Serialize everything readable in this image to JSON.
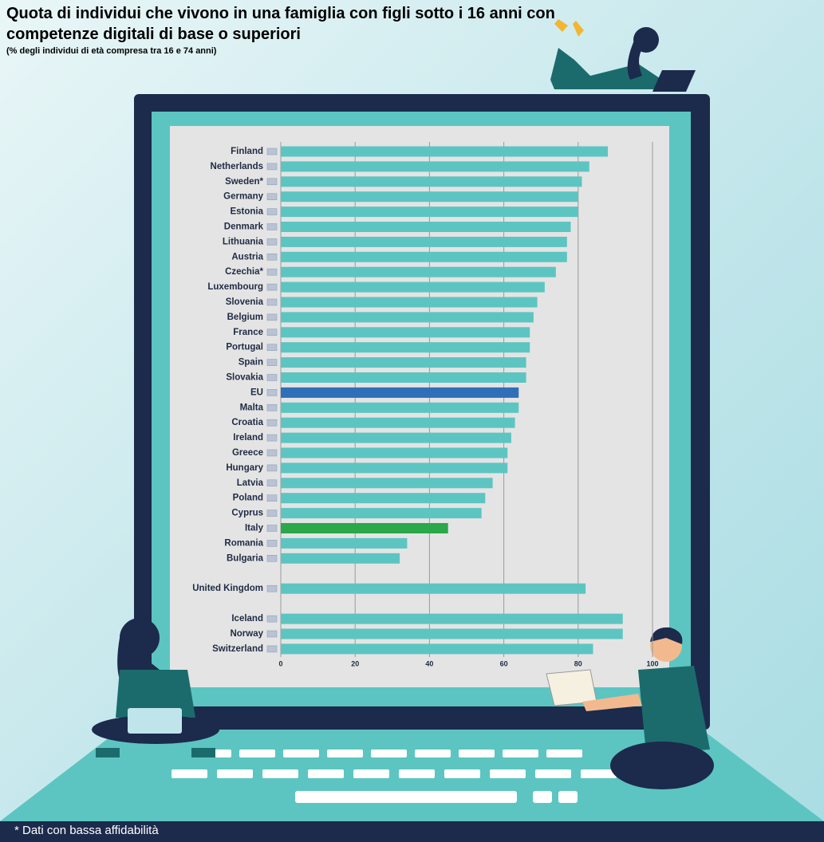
{
  "chart_data": {
    "type": "bar",
    "orientation": "horizontal",
    "title": "Quota di individui che vivono in una famiglia con figli sotto i 16 anni con competenze digitali di base o superiori",
    "subtitle": "(% degli individui di età compresa tra 16 e 74 anni)",
    "footnote": "* Dati con bassa affidabilità",
    "categories": [
      "Finland",
      "Netherlands",
      "Sweden*",
      "Germany",
      "Estonia",
      "Denmark",
      "Lithuania",
      "Austria",
      "Czechia*",
      "Luxembourg",
      "Slovenia",
      "Belgium",
      "France",
      "Portugal",
      "Spain",
      "Slovakia",
      "EU",
      "Malta",
      "Croatia",
      "Ireland",
      "Greece",
      "Hungary",
      "Latvia",
      "Poland",
      "Cyprus",
      "Italy",
      "Romania",
      "Bulgaria",
      "United Kingdom",
      "Iceland",
      "Norway",
      "Switzerland"
    ],
    "values": [
      88,
      83,
      81,
      80,
      80,
      78,
      77,
      77,
      74,
      71,
      69,
      68,
      67,
      67,
      66,
      66,
      64,
      64,
      63,
      62,
      61,
      61,
      57,
      55,
      54,
      45,
      34,
      32,
      82,
      92,
      92,
      84
    ],
    "colors": [
      "#5cc5c1",
      "#5cc5c1",
      "#5cc5c1",
      "#5cc5c1",
      "#5cc5c1",
      "#5cc5c1",
      "#5cc5c1",
      "#5cc5c1",
      "#5cc5c1",
      "#5cc5c1",
      "#5cc5c1",
      "#5cc5c1",
      "#5cc5c1",
      "#5cc5c1",
      "#5cc5c1",
      "#5cc5c1",
      "#2f6fb8",
      "#5cc5c1",
      "#5cc5c1",
      "#5cc5c1",
      "#5cc5c1",
      "#5cc5c1",
      "#5cc5c1",
      "#5cc5c1",
      "#5cc5c1",
      "#2aa84a",
      "#5cc5c1",
      "#5cc5c1",
      "#5cc5c1",
      "#5cc5c1",
      "#5cc5c1",
      "#5cc5c1"
    ],
    "xlim": [
      0,
      100
    ],
    "xticks": [
      0,
      20,
      40,
      60,
      80,
      100
    ],
    "grid": true
  }
}
